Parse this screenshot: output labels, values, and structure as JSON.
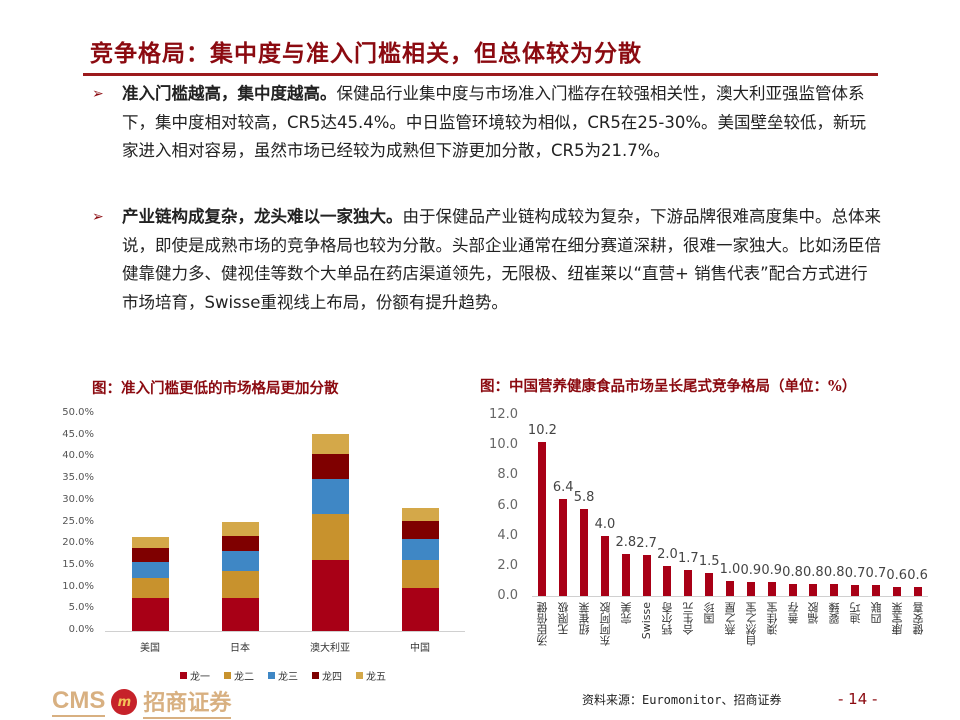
{
  "page": {
    "title": "竞争格局：集中度与准入门槛相关，但总体较为分散",
    "bullets": [
      {
        "bold": "准入门槛越高，集中度越高。",
        "text": "保健品行业集中度与市场准入门槛存在较强相关性，澳大利亚强监管体系下，集中度相对较高，CR5达45.4%。中日监管环境较为相似，CR5在25-30%。美国壁垒较低，新玩家进入相对容易，虽然市场已经较为成熟但下游更加分散，CR5为21.7%。"
      },
      {
        "bold": "产业链构成复杂，龙头难以一家独大。",
        "text": "由于保健品产业链构成较为复杂，下游品牌很难高度集中。总体来说，即使是成熟市场的竞争格局也较为分散。头部企业通常在细分赛道深耕，很难一家独大。比如汤臣倍健靠健力多、健视佳等数个大单品在药店渠道领先，无限极、纽崔莱以“直营+ 销售代表”配合方式进行市场培育，Swisse重视线上布局，份额有提升趋势。"
      }
    ],
    "bullet_marker": "➢",
    "footer": {
      "logo_latin": "CMS",
      "logo_badge": "m",
      "logo_cn": "招商证券",
      "source": "资料来源：Euromonitor、招商证券",
      "page_number": "- 14 -"
    }
  },
  "colors": {
    "title": "#8b0a10",
    "rule": "#9c1a1c",
    "series": [
      "#a80016",
      "#c8922d",
      "#3f87c5",
      "#7f0000",
      "#d4a849"
    ],
    "bar_right": "#a80016"
  },
  "chart_data": [
    {
      "type": "bar",
      "stacked": true,
      "title": "图：准入门槛更低的市场格局更加分散",
      "categories": [
        "美国",
        "日本",
        "澳大利亚",
        "中国"
      ],
      "series": [
        {
          "name": "龙一",
          "values": [
            7.6,
            7.6,
            16.4,
            9.9
          ]
        },
        {
          "name": "龙二",
          "values": [
            4.6,
            6.2,
            10.6,
            6.5
          ]
        },
        {
          "name": "龙三",
          "values": [
            3.7,
            4.6,
            8.0,
            4.8
          ]
        },
        {
          "name": "龙四",
          "values": [
            3.2,
            3.5,
            5.8,
            4.1
          ]
        },
        {
          "name": "龙五",
          "values": [
            2.6,
            3.2,
            4.6,
            3.0
          ]
        }
      ],
      "totals": [
        21.7,
        25.1,
        45.4,
        28.3
      ],
      "yticks": [
        "0.0%",
        "5.0%",
        "10.0%",
        "15.0%",
        "20.0%",
        "25.0%",
        "30.0%",
        "35.0%",
        "40.0%",
        "45.0%",
        "50.0%"
      ],
      "ylim": [
        0,
        50
      ],
      "xlabel": "",
      "ylabel": "",
      "legend_position": "bottom",
      "grid": false
    },
    {
      "type": "bar",
      "title": "图：中国营养健康食品市场呈长尾式竞争格局（单位：%）",
      "categories": [
        "汤臣倍健",
        "无限极",
        "纽崔莱",
        "东阿阿胶",
        "完美",
        "Swisse",
        "钙尔奇",
        "合生元",
        "国珍",
        "燕之屋",
        "自然之宝",
        "澳佳宝",
        "善存",
        "福胶",
        "婴臻",
        "迪巧",
        "四联",
        "康宝莱",
        "健安喜"
      ],
      "values": [
        10.2,
        6.4,
        5.8,
        4.0,
        2.8,
        2.7,
        2.0,
        1.7,
        1.5,
        1.0,
        0.9,
        0.9,
        0.8,
        0.8,
        0.8,
        0.7,
        0.7,
        0.6,
        0.6
      ],
      "value_labels": [
        "10.2",
        "6.4",
        "5.8",
        "4.0",
        "2.8",
        "2.7",
        "2.0",
        "1.7",
        "1.5",
        "1.0",
        "0.9",
        "0.9",
        "0.8",
        "0.8",
        "0.8",
        "0.7",
        "0.7",
        "0.6",
        "0.6"
      ],
      "yticks": [
        "0.0",
        "2.0",
        "4.0",
        "6.0",
        "8.0",
        "10.0",
        "12.0"
      ],
      "ylim": [
        0,
        12
      ],
      "xlabel": "",
      "ylabel": "",
      "grid": false
    }
  ]
}
